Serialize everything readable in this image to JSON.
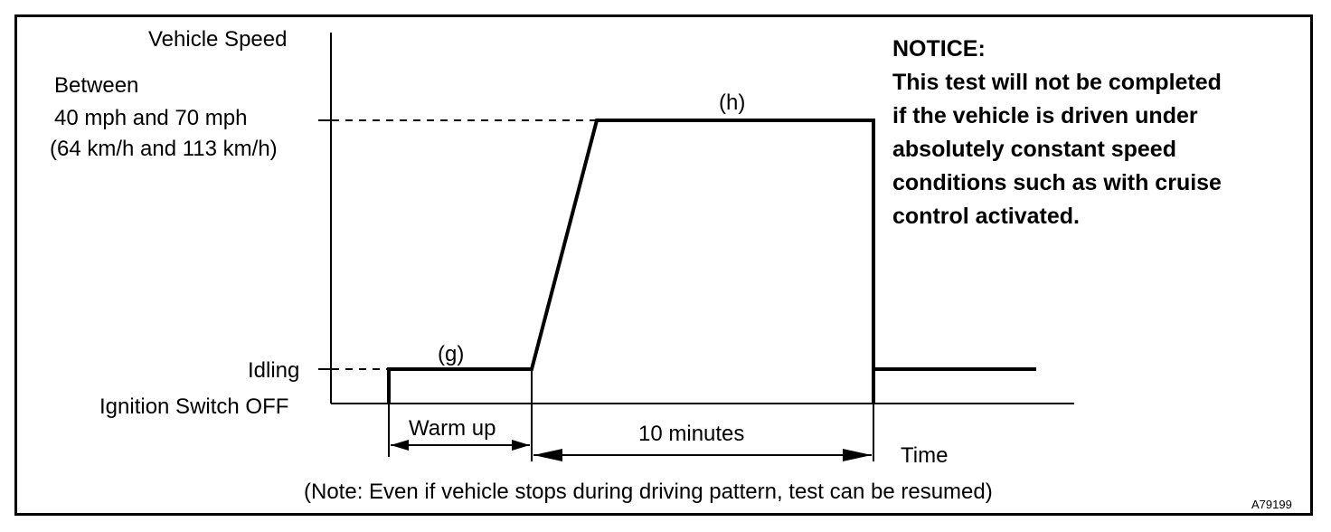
{
  "y_axis": {
    "title": "Vehicle Speed",
    "levels": {
      "between_line1": "Between",
      "between_line2": "40 mph and 70 mph",
      "between_line3": "(64 km/h and 113 km/h)",
      "idling": "Idling",
      "ignition_off": "Ignition Switch OFF"
    }
  },
  "x_axis": {
    "title": "Time"
  },
  "segments": {
    "g_label": "(g)",
    "h_label": "(h)",
    "warm_up": "Warm up",
    "ten_minutes": "10 minutes"
  },
  "notice": {
    "heading": "NOTICE:",
    "lines": [
      "This test will not be completed",
      "if the vehicle is driven under",
      "absolutely constant speed",
      "conditions such as with cruise",
      "control activated."
    ]
  },
  "note": "(Note: Even if vehicle stops during driving pattern, test can be resumed)",
  "figure_code": "A79199",
  "colors": {
    "line": "#000000",
    "background": "#ffffff"
  }
}
